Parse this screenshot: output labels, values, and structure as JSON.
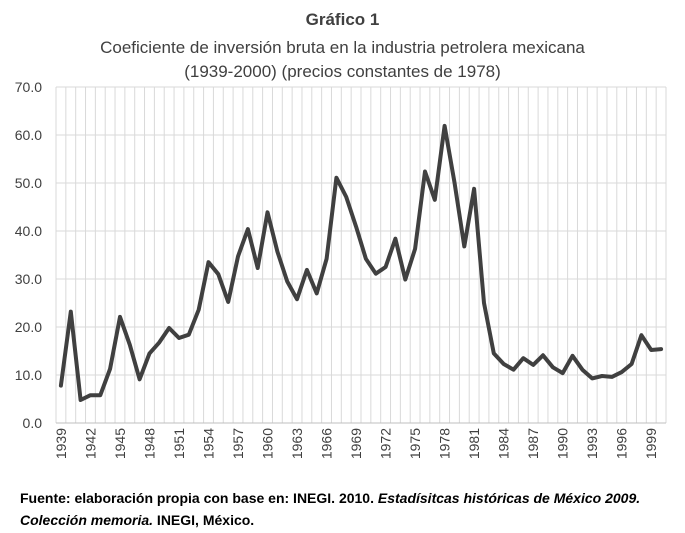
{
  "chart_data": {
    "type": "line",
    "title": "Gráfico 1",
    "subtitle_line1": "Coeficiente de inversión bruta en la industria petrolera mexicana",
    "subtitle_line2": "(1939-2000) (precios constantes de 1978)",
    "xlabel": "",
    "ylabel": "",
    "ylim": [
      0,
      70
    ],
    "yticks": [
      "0.0",
      "10.0",
      "20.0",
      "30.0",
      "40.0",
      "50.0",
      "60.0",
      "70.0"
    ],
    "xtick_labels": [
      "1939",
      "1942",
      "1945",
      "1948",
      "1951",
      "1954",
      "1957",
      "1960",
      "1963",
      "1966",
      "1969",
      "1972",
      "1975",
      "1978",
      "1981",
      "1984",
      "1987",
      "1990",
      "1993",
      "1996",
      "1999"
    ],
    "grid": "vertical and horizontal",
    "line_color": "#404040",
    "x": [
      1939,
      1940,
      1941,
      1942,
      1943,
      1944,
      1945,
      1946,
      1947,
      1948,
      1949,
      1950,
      1951,
      1952,
      1953,
      1954,
      1955,
      1956,
      1957,
      1958,
      1959,
      1960,
      1961,
      1962,
      1963,
      1964,
      1965,
      1966,
      1967,
      1968,
      1969,
      1970,
      1971,
      1972,
      1973,
      1974,
      1975,
      1976,
      1977,
      1978,
      1979,
      1980,
      1981,
      1982,
      1983,
      1984,
      1985,
      1986,
      1987,
      1988,
      1989,
      1990,
      1991,
      1992,
      1993,
      1994,
      1995,
      1996,
      1997,
      1998,
      1999,
      2000
    ],
    "values": [
      7.8,
      23.2,
      4.8,
      5.8,
      5.8,
      11.3,
      22.1,
      16.3,
      9.1,
      14.5,
      16.8,
      19.8,
      17.7,
      18.4,
      23.6,
      33.5,
      31.0,
      25.2,
      34.7,
      40.4,
      32.3,
      43.9,
      35.7,
      29.5,
      25.8,
      31.9,
      27.0,
      34.2,
      51.1,
      47.1,
      40.9,
      34.2,
      31.1,
      32.5,
      38.4,
      29.9,
      36.3,
      52.4,
      46.5,
      61.9,
      50.1,
      36.8,
      48.8,
      25.0,
      14.5,
      12.3,
      11.1,
      13.5,
      12.1,
      14.1,
      11.6,
      10.4,
      14.0,
      11.1,
      9.3,
      9.8,
      9.6,
      10.6,
      12.3,
      18.3,
      15.2,
      15.4
    ]
  },
  "source": {
    "part_bold": "Fuente: elaboración propia con base en: INEGI. 2010. ",
    "part_italic": "Estadísitcas históricas de México 2009. Colección memoria.",
    "part_bold_end": " INEGI, México."
  }
}
